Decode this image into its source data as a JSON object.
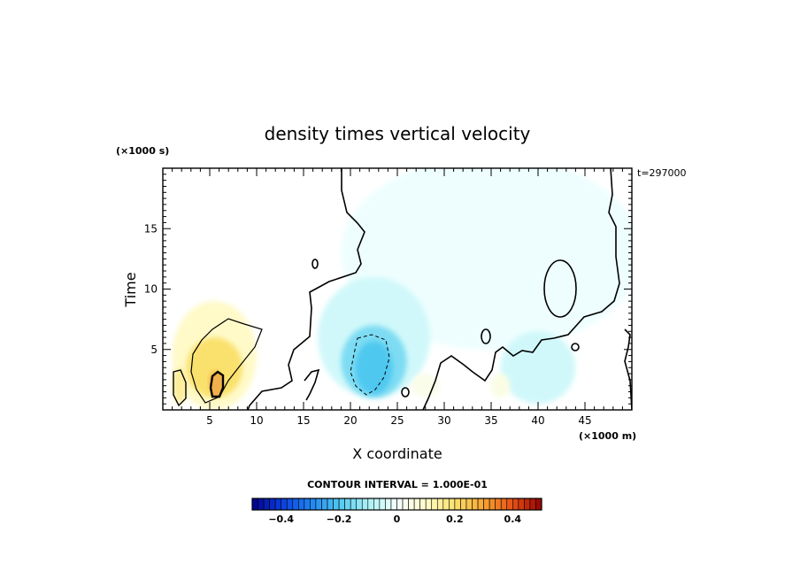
{
  "chart_data": {
    "type": "heatmap",
    "title": "density times vertical velocity",
    "xlabel": "X coordinate",
    "ylabel": "Time",
    "x_scale_label": "(×1000 m)",
    "y_scale_label": "(×1000 s)",
    "time_label": "t=297000",
    "xlim": [
      0,
      50
    ],
    "ylim": [
      0,
      20
    ],
    "x_ticks": [
      5,
      10,
      15,
      20,
      25,
      30,
      35,
      40,
      45
    ],
    "x_tick_labels": [
      "5",
      "10",
      "15",
      "20",
      "25",
      "30",
      "35",
      "40",
      "45"
    ],
    "y_ticks": [
      5,
      10,
      15
    ],
    "y_tick_labels": [
      "5",
      "10",
      "15"
    ],
    "contour_interval_label": "CONTOUR INTERVAL = 1.000E-01",
    "colorbar": {
      "min": -0.5,
      "max": 0.5,
      "ticks": [
        -0.4,
        -0.2,
        0,
        0.2,
        0.4
      ],
      "tick_labels": [
        "−0.4",
        "−0.2",
        "0",
        "0.2",
        "0.4"
      ]
    },
    "regions": [
      {
        "name": "positive-lobe-west",
        "x": 5.5,
        "y": 4.5,
        "rx": 4.5,
        "ry": 4.5,
        "value": 0.1
      },
      {
        "name": "positive-core-west",
        "x": 5.5,
        "y": 3.5,
        "rx": 3.0,
        "ry": 2.5,
        "value": 0.2
      },
      {
        "name": "positive-peak",
        "x": 5.6,
        "y": 2.3,
        "rx": 0.6,
        "ry": 0.9,
        "value": 0.3
      },
      {
        "name": "positive-edge",
        "x": 1.8,
        "y": 2.0,
        "rx": 0.8,
        "ry": 1.5,
        "value": 0.15
      },
      {
        "name": "negative-lobe-center",
        "x": 22.5,
        "y": 6.0,
        "rx": 6.0,
        "ry": 5.0,
        "value": -0.05
      },
      {
        "name": "negative-core-center",
        "x": 22.5,
        "y": 4.0,
        "rx": 3.5,
        "ry": 3.0,
        "value": -0.15
      },
      {
        "name": "negative-strong-center",
        "x": 22.5,
        "y": 3.5,
        "rx": 2.0,
        "ry": 2.2,
        "value": -0.2
      },
      {
        "name": "negative-lobe-east",
        "x": 40.0,
        "y": 3.5,
        "rx": 4.0,
        "ry": 3.0,
        "value": -0.05
      },
      {
        "name": "positive-speck-east",
        "x": 36.0,
        "y": 2.0,
        "rx": 1.0,
        "ry": 1.0,
        "value": 0.05
      },
      {
        "name": "positive-speck-mid",
        "x": 28.0,
        "y": 2.0,
        "rx": 1.5,
        "ry": 1.0,
        "value": 0.04
      },
      {
        "name": "background-upper-right",
        "x": 35.0,
        "y": 13.0,
        "rx": 16.0,
        "ry": 8.0,
        "value": -0.01
      }
    ]
  }
}
